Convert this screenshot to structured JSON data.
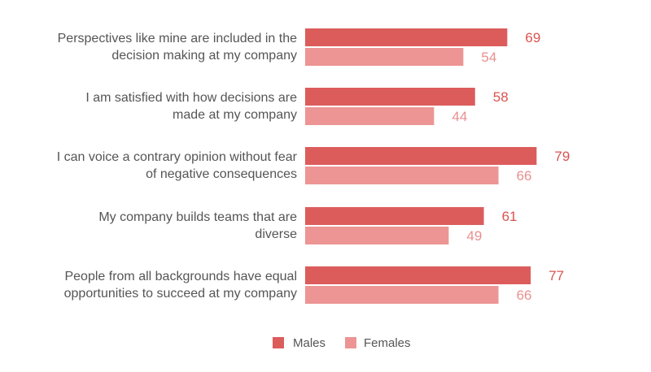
{
  "chart_data": {
    "type": "bar",
    "orientation": "horizontal",
    "categories": [
      [
        "Perspectives like mine are included in the",
        "decision making at my company"
      ],
      [
        "I am satisfied with how decisions are",
        "made at my company"
      ],
      [
        "I can voice a contrary opinion without fear",
        "of negative consequences"
      ],
      [
        "My company builds teams that are",
        "diverse"
      ],
      [
        "People from all backgrounds have equal",
        "opportunities to succeed at my company"
      ]
    ],
    "series": [
      {
        "name": "Males",
        "values": [
          69,
          58,
          79,
          61,
          77
        ],
        "color": "#dc5c5c"
      },
      {
        "name": "Females",
        "values": [
          54,
          44,
          66,
          49,
          66
        ],
        "color": "#ec9594"
      }
    ],
    "xlim": [
      0,
      100
    ],
    "grid": false,
    "legend_position": "bottom"
  }
}
